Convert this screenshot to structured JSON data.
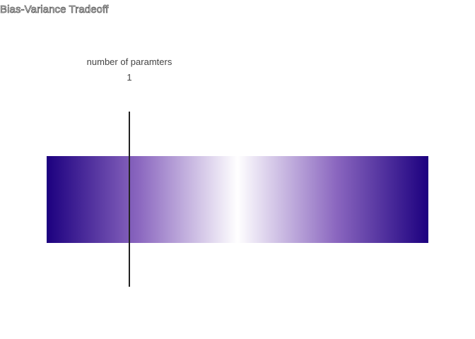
{
  "title": "Bias-Variance Tradeoff",
  "slider": {
    "label": "number of paramters",
    "value": "1"
  },
  "colors": {
    "gradient_edge": "#1c007f",
    "gradient_mid": "#8a66bf",
    "gradient_center": "#ffffff",
    "marker": "#222222"
  }
}
